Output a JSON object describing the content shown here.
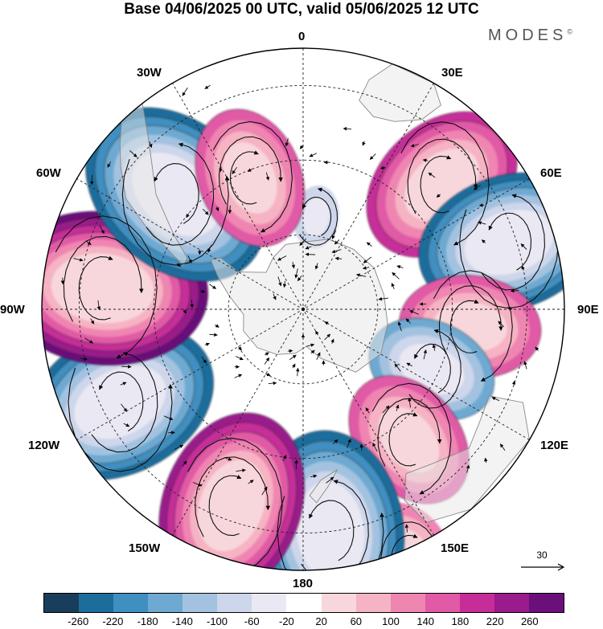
{
  "title": "Base 04/06/2025 00 UTC, valid 05/06/2025 12 UTC",
  "brand": "MODES",
  "brand_mark": "©",
  "longitude_labels": {
    "lon_0": "0",
    "lon_30e": "30E",
    "lon_60e": "60E",
    "lon_90e": "90E",
    "lon_120e": "120E",
    "lon_150e": "150E",
    "lon_180": "180",
    "lon_150w": "150W",
    "lon_120w": "120W",
    "lon_90w": "90W",
    "lon_60w": "60W",
    "lon_30w": "30W"
  },
  "vector_reference": {
    "value": "30"
  },
  "colorbar": {
    "colors": [
      "#183e5c",
      "#1d6d9c",
      "#3f8fc0",
      "#6ea9d2",
      "#a3c2e0",
      "#cdd6ea",
      "#eae8f3",
      "#ffffff",
      "#f8d7dc",
      "#f5b3c3",
      "#ef85b1",
      "#e05aa6",
      "#c62d99",
      "#9a1b8b",
      "#6b107a"
    ],
    "ticks": [
      "-260",
      "-220",
      "-180",
      "-140",
      "-100",
      "-60",
      "-20",
      "20",
      "60",
      "100",
      "140",
      "180",
      "220",
      "260"
    ]
  },
  "anomaly_centers": [
    {
      "lon": 8,
      "colat": 25,
      "value": -40
    },
    {
      "lon": 48,
      "colat": 50,
      "value": 200
    },
    {
      "lon": 72,
      "colat": 58,
      "value": -220
    },
    {
      "lon": 96,
      "colat": 45,
      "value": 160
    },
    {
      "lon": 115,
      "colat": 38,
      "value": -140
    },
    {
      "lon": 141,
      "colat": 45,
      "value": 160
    },
    {
      "lon": 157,
      "colat": 73,
      "value": 130
    },
    {
      "lon": 173,
      "colat": 60,
      "value": -250
    },
    {
      "lon": -160,
      "colat": 56,
      "value": 230
    },
    {
      "lon": -117,
      "colat": 55,
      "value": -240
    },
    {
      "lon": -84,
      "colat": 54,
      "value": 260
    },
    {
      "lon": -48,
      "colat": 46,
      "value": -250
    },
    {
      "lon": -22,
      "colat": 38,
      "value": 160
    },
    {
      "lon": -88,
      "colat": 87,
      "value": -80
    }
  ]
}
